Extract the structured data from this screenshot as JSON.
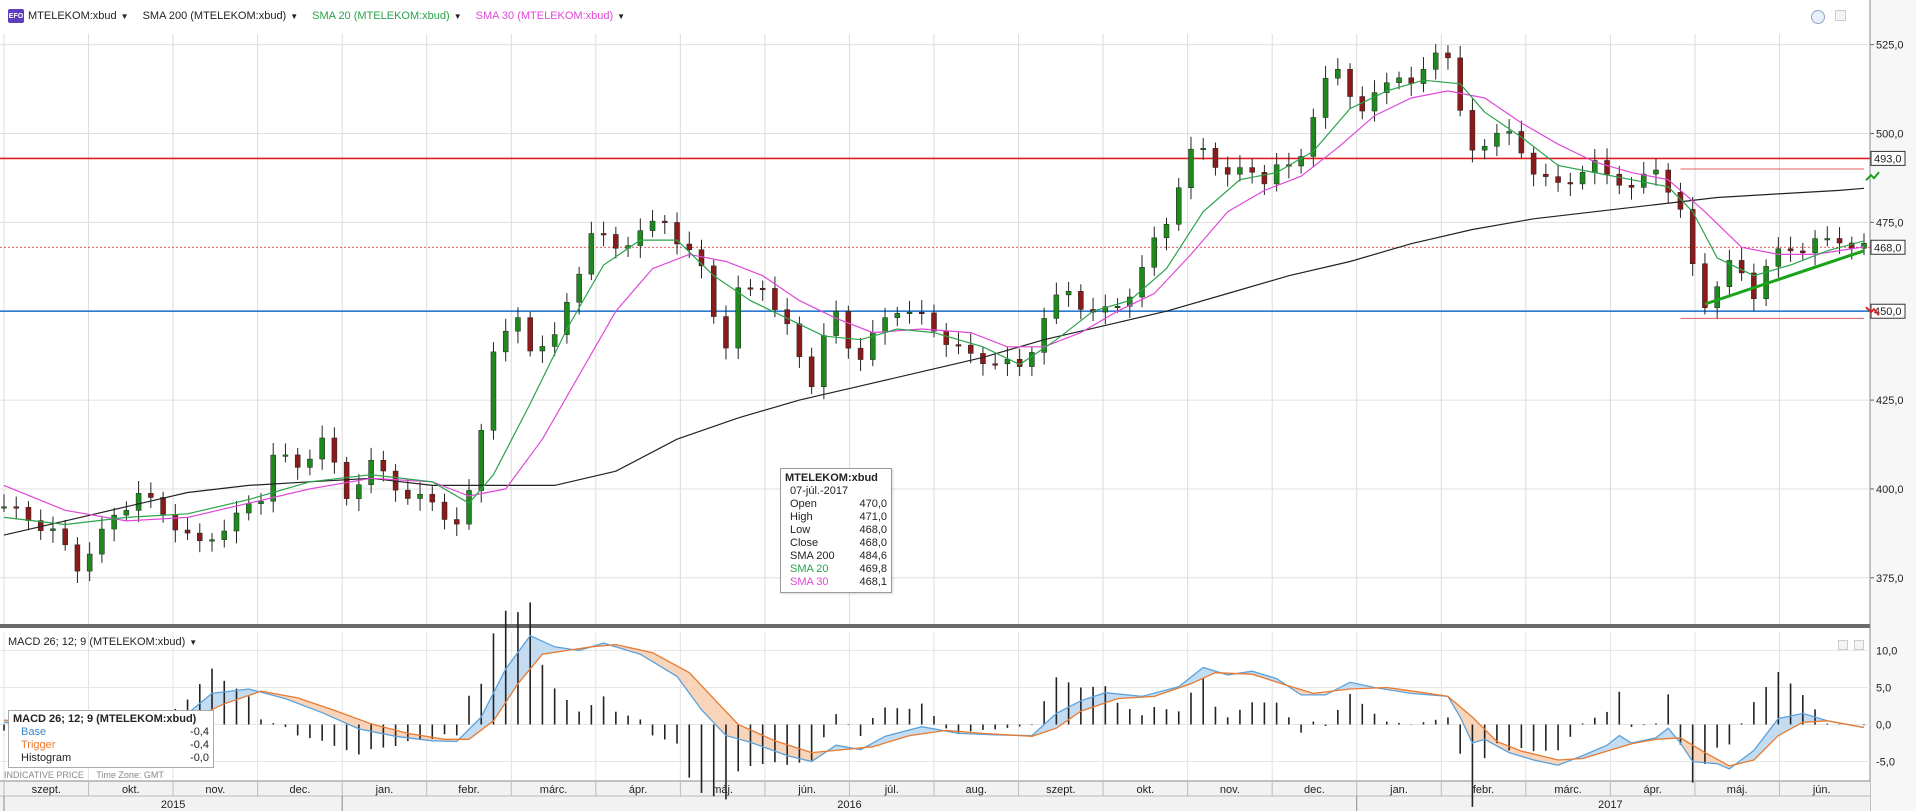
{
  "legend": {
    "instrument": "MTELEKOM:xbud",
    "sma200": "SMA 200 (MTELEKOM:xbud)",
    "sma20": "SMA 20 (MTELEKOM:xbud)",
    "sma30": "SMA 30 (MTELEKOM:xbud)"
  },
  "colors": {
    "candle_up": "#1e8a1e",
    "candle_down": "#8b1a1a",
    "sma200": "#222222",
    "sma20": "#2aa34a",
    "sma30": "#e048d8",
    "resistance": "#e02020",
    "support": "#2a78d0",
    "macd_base": "#5aa2dc",
    "macd_trigger": "#e87a30"
  },
  "tooltip": {
    "title": "MTELEKOM:xbud",
    "date": "07-júl.-2017",
    "rows": [
      {
        "label": "Open",
        "value": "470,0"
      },
      {
        "label": "High",
        "value": "471,0"
      },
      {
        "label": "Low",
        "value": "468,0"
      },
      {
        "label": "Close",
        "value": "468,0"
      },
      {
        "label": "SMA 200",
        "value": "484,6"
      },
      {
        "label": "SMA 20",
        "value": "469,8"
      },
      {
        "label": "SMA 30",
        "value": "468,1"
      }
    ]
  },
  "macd": {
    "label": "MACD 26; 12; 9 (MTELEKOM:xbud)",
    "box_title": "MACD 26; 12; 9 (MTELEKOM:xbud)",
    "rows": [
      {
        "label": "Base",
        "value": "-0,4"
      },
      {
        "label": "Trigger",
        "value": "-0,4"
      },
      {
        "label": "Histogram",
        "value": "-0,0"
      }
    ]
  },
  "footer": {
    "price_type": "INDICATIVE PRICE",
    "timezone": "Time Zone: GMT"
  },
  "chart_data": {
    "type": "line",
    "price_axis": {
      "min": 362,
      "max": 528,
      "ticks": [
        375,
        400,
        425,
        450,
        475,
        500,
        525
      ],
      "tick_labels": [
        "375,0",
        "400,0",
        "425,0",
        "450,0",
        "475,0",
        "500,0",
        "525,0"
      ]
    },
    "macd_axis": {
      "min": -7.5,
      "max": 12.5,
      "ticks": [
        -5,
        0,
        5,
        10
      ],
      "tick_labels": [
        "-5,0",
        "0,0",
        "5,0",
        "10,0"
      ]
    },
    "months": [
      "szept.",
      "okt.",
      "nov.",
      "dec.",
      "jan.",
      "febr.",
      "márc.",
      "ápr.",
      "máj.",
      "jún.",
      "júl.",
      "aug.",
      "szept.",
      "okt.",
      "nov.",
      "dec.",
      "jan.",
      "febr.",
      "márc.",
      "ápr.",
      "máj.",
      "jún."
    ],
    "years": [
      "2015",
      "2016",
      "2017"
    ],
    "horizontal_levels": [
      {
        "value": 493,
        "label": "493,0",
        "color": "#e02020"
      },
      {
        "value": 468,
        "label": "468,0",
        "color": "#e02020",
        "dotted": true
      },
      {
        "value": 450,
        "label": "450,0",
        "color": "#2a78d0"
      }
    ],
    "close": [
      [
        0,
        395
      ],
      [
        4,
        388
      ],
      [
        6,
        378
      ],
      [
        9,
        392
      ],
      [
        11,
        399
      ],
      [
        14,
        390
      ],
      [
        16,
        384
      ],
      [
        19,
        392
      ],
      [
        21,
        398
      ],
      [
        22,
        410
      ],
      [
        24,
        406
      ],
      [
        26,
        414
      ],
      [
        27,
        406
      ],
      [
        28,
        398
      ],
      [
        30,
        407
      ],
      [
        31,
        404
      ],
      [
        33,
        398
      ],
      [
        35,
        396
      ],
      [
        37,
        390
      ],
      [
        38,
        398
      ],
      [
        39,
        417
      ],
      [
        40,
        440
      ],
      [
        42,
        447
      ],
      [
        43,
        440
      ],
      [
        45,
        442
      ],
      [
        46,
        452
      ],
      [
        47,
        462
      ],
      [
        48,
        472
      ],
      [
        50,
        468
      ],
      [
        52,
        472
      ],
      [
        54,
        476
      ],
      [
        55,
        470
      ],
      [
        57,
        462
      ],
      [
        58,
        450
      ],
      [
        59,
        440
      ],
      [
        60,
        455
      ],
      [
        62,
        458
      ],
      [
        63,
        450
      ],
      [
        64,
        445
      ],
      [
        65,
        438
      ],
      [
        66,
        430
      ],
      [
        67,
        442
      ],
      [
        68,
        449
      ],
      [
        69,
        441
      ],
      [
        70,
        437
      ],
      [
        72,
        448
      ],
      [
        73,
        451
      ],
      [
        75,
        448
      ],
      [
        77,
        442
      ],
      [
        79,
        437
      ],
      [
        81,
        436
      ],
      [
        83,
        434
      ],
      [
        84,
        440
      ],
      [
        85,
        448
      ],
      [
        86,
        453
      ],
      [
        87,
        456
      ],
      [
        88,
        452
      ],
      [
        89,
        449
      ],
      [
        90,
        450
      ],
      [
        92,
        455
      ],
      [
        93,
        461
      ],
      [
        94,
        470
      ],
      [
        95,
        476
      ],
      [
        96,
        485
      ],
      [
        97,
        494
      ],
      [
        98,
        496
      ],
      [
        99,
        492
      ],
      [
        100,
        488
      ],
      [
        102,
        490
      ],
      [
        103,
        487
      ],
      [
        104,
        490
      ],
      [
        105,
        490
      ],
      [
        106,
        495
      ],
      [
        107,
        505
      ],
      [
        108,
        514
      ],
      [
        109,
        518
      ],
      [
        110,
        512
      ],
      [
        111,
        506
      ],
      [
        112,
        510
      ],
      [
        113,
        515
      ],
      [
        114,
        517
      ],
      [
        115,
        513
      ],
      [
        116,
        517
      ],
      [
        117,
        524
      ],
      [
        118,
        522
      ],
      [
        119,
        505
      ],
      [
        120,
        495
      ],
      [
        121,
        498
      ],
      [
        122,
        500
      ],
      [
        123,
        499
      ],
      [
        124,
        495
      ],
      [
        125,
        490
      ],
      [
        126,
        487
      ],
      [
        127,
        485
      ],
      [
        128,
        487
      ],
      [
        129,
        490
      ],
      [
        130,
        491
      ],
      [
        131,
        488
      ],
      [
        132,
        487
      ],
      [
        133,
        485
      ],
      [
        134,
        487
      ],
      [
        135,
        490
      ],
      [
        136,
        485
      ],
      [
        137,
        478
      ],
      [
        138,
        462
      ],
      [
        139,
        452
      ],
      [
        140,
        458
      ],
      [
        141,
        463
      ],
      [
        142,
        460
      ],
      [
        143,
        455
      ],
      [
        144,
        463
      ],
      [
        145,
        466
      ],
      [
        146,
        467
      ],
      [
        147,
        468
      ],
      [
        148,
        470
      ],
      [
        149,
        469
      ],
      [
        150,
        470
      ],
      [
        151,
        469
      ],
      [
        152,
        468
      ]
    ],
    "sma20": [
      [
        0,
        392
      ],
      [
        5,
        390
      ],
      [
        10,
        392
      ],
      [
        15,
        393
      ],
      [
        20,
        397
      ],
      [
        25,
        402
      ],
      [
        30,
        404
      ],
      [
        35,
        402
      ],
      [
        38,
        396
      ],
      [
        40,
        404
      ],
      [
        43,
        424
      ],
      [
        46,
        445
      ],
      [
        49,
        463
      ],
      [
        52,
        470
      ],
      [
        55,
        470
      ],
      [
        58,
        460
      ],
      [
        61,
        453
      ],
      [
        64,
        448
      ],
      [
        67,
        443
      ],
      [
        70,
        442
      ],
      [
        73,
        445
      ],
      [
        76,
        444
      ],
      [
        80,
        440
      ],
      [
        83,
        435
      ],
      [
        86,
        442
      ],
      [
        89,
        450
      ],
      [
        92,
        453
      ],
      [
        95,
        462
      ],
      [
        98,
        478
      ],
      [
        101,
        487
      ],
      [
        104,
        489
      ],
      [
        107,
        495
      ],
      [
        110,
        507
      ],
      [
        113,
        512
      ],
      [
        116,
        515
      ],
      [
        119,
        514
      ],
      [
        121,
        506
      ],
      [
        124,
        499
      ],
      [
        127,
        491
      ],
      [
        130,
        489
      ],
      [
        133,
        487
      ],
      [
        136,
        485
      ],
      [
        138,
        478
      ],
      [
        140,
        465
      ],
      [
        143,
        460
      ],
      [
        146,
        463
      ],
      [
        149,
        467
      ],
      [
        152,
        469.8
      ]
    ],
    "sma30": [
      [
        0,
        401
      ],
      [
        5,
        394
      ],
      [
        10,
        391
      ],
      [
        15,
        392
      ],
      [
        20,
        396
      ],
      [
        25,
        400
      ],
      [
        30,
        403
      ],
      [
        35,
        402
      ],
      [
        38,
        398
      ],
      [
        41,
        400
      ],
      [
        44,
        414
      ],
      [
        47,
        432
      ],
      [
        50,
        450
      ],
      [
        53,
        462
      ],
      [
        56,
        466
      ],
      [
        59,
        464
      ],
      [
        62,
        460
      ],
      [
        65,
        453
      ],
      [
        68,
        448
      ],
      [
        71,
        444
      ],
      [
        75,
        445
      ],
      [
        79,
        444
      ],
      [
        82,
        440
      ],
      [
        85,
        440
      ],
      [
        88,
        444
      ],
      [
        91,
        450
      ],
      [
        94,
        455
      ],
      [
        97,
        466
      ],
      [
        100,
        478
      ],
      [
        103,
        484
      ],
      [
        106,
        488
      ],
      [
        109,
        496
      ],
      [
        112,
        505
      ],
      [
        115,
        510
      ],
      [
        118,
        512
      ],
      [
        121,
        510
      ],
      [
        124,
        503
      ],
      [
        127,
        497
      ],
      [
        130,
        492
      ],
      [
        133,
        489
      ],
      [
        136,
        487
      ],
      [
        139,
        478
      ],
      [
        142,
        468
      ],
      [
        145,
        466
      ],
      [
        148,
        466
      ],
      [
        152,
        468.1
      ]
    ],
    "sma200": [
      [
        0,
        387
      ],
      [
        5,
        391
      ],
      [
        10,
        395
      ],
      [
        15,
        399
      ],
      [
        20,
        401
      ],
      [
        25,
        402
      ],
      [
        30,
        403
      ],
      [
        35,
        401
      ],
      [
        40,
        401
      ],
      [
        45,
        401
      ],
      [
        50,
        405
      ],
      [
        55,
        414
      ],
      [
        60,
        420
      ],
      [
        65,
        425
      ],
      [
        70,
        429
      ],
      [
        75,
        433
      ],
      [
        80,
        437
      ],
      [
        85,
        442
      ],
      [
        90,
        446
      ],
      [
        95,
        450
      ],
      [
        100,
        455
      ],
      [
        105,
        460
      ],
      [
        110,
        464
      ],
      [
        115,
        469
      ],
      [
        120,
        473
      ],
      [
        125,
        476
      ],
      [
        130,
        478
      ],
      [
        135,
        480
      ],
      [
        140,
        482
      ],
      [
        145,
        483
      ],
      [
        150,
        484
      ],
      [
        152,
        484.6
      ]
    ],
    "trendline": [
      [
        139,
        452
      ],
      [
        152,
        467
      ]
    ],
    "macd_base": [
      [
        0,
        0.3
      ],
      [
        6,
        -0.4
      ],
      [
        12,
        -0.5
      ],
      [
        15,
        1.5
      ],
      [
        17,
        4.2
      ],
      [
        20,
        4.8
      ],
      [
        23,
        3.5
      ],
      [
        26,
        1.6
      ],
      [
        29,
        -0.6
      ],
      [
        32,
        -1.6
      ],
      [
        35,
        -2.2
      ],
      [
        37,
        -2.3
      ],
      [
        39,
        1.0
      ],
      [
        41,
        7.5
      ],
      [
        43,
        12.0
      ],
      [
        45,
        10.5
      ],
      [
        47,
        10.0
      ],
      [
        49,
        11.0
      ],
      [
        52,
        9.5
      ],
      [
        55,
        6.5
      ],
      [
        57,
        2.0
      ],
      [
        59,
        -1.5
      ],
      [
        61,
        -2.4
      ],
      [
        64,
        -4.2
      ],
      [
        66,
        -5.0
      ],
      [
        68,
        -2.8
      ],
      [
        70,
        -3.4
      ],
      [
        72,
        -1.6
      ],
      [
        75,
        -0.3
      ],
      [
        78,
        -1.2
      ],
      [
        81,
        -1.4
      ],
      [
        84,
        -1.5
      ],
      [
        86,
        1.5
      ],
      [
        88,
        3.2
      ],
      [
        90,
        4.3
      ],
      [
        93,
        3.8
      ],
      [
        96,
        5.1
      ],
      [
        98,
        7.7
      ],
      [
        100,
        6.7
      ],
      [
        102,
        7.2
      ],
      [
        104,
        6.2
      ],
      [
        106,
        4.0
      ],
      [
        108,
        4.0
      ],
      [
        110,
        5.7
      ],
      [
        112,
        5.0
      ],
      [
        115,
        4.2
      ],
      [
        118,
        3.8
      ],
      [
        119,
        1.0
      ],
      [
        120,
        -2.5
      ],
      [
        121,
        -2.0
      ],
      [
        123,
        -3.8
      ],
      [
        125,
        -4.8
      ],
      [
        127,
        -5.5
      ],
      [
        129,
        -4.2
      ],
      [
        131,
        -2.8
      ],
      [
        132,
        -1.5
      ],
      [
        133,
        -2.5
      ],
      [
        135,
        -1.8
      ],
      [
        136,
        -0.5
      ],
      [
        137,
        -2.5
      ],
      [
        138,
        -5.0
      ],
      [
        140,
        -5.3
      ],
      [
        141,
        -6.0
      ],
      [
        143,
        -3.5
      ],
      [
        145,
        0.8
      ],
      [
        147,
        1.5
      ],
      [
        149,
        0.5
      ],
      [
        152,
        -0.4
      ]
    ],
    "macd_trigger": [
      [
        0,
        0.6
      ],
      [
        6,
        0.0
      ],
      [
        12,
        -0.4
      ],
      [
        15,
        0.5
      ],
      [
        18,
        2.8
      ],
      [
        21,
        4.5
      ],
      [
        24,
        3.6
      ],
      [
        27,
        1.9
      ],
      [
        30,
        0.1
      ],
      [
        33,
        -1.2
      ],
      [
        36,
        -2.0
      ],
      [
        38,
        -2.0
      ],
      [
        40,
        0.5
      ],
      [
        42,
        5.5
      ],
      [
        44,
        9.5
      ],
      [
        46,
        10.0
      ],
      [
        48,
        10.5
      ],
      [
        50,
        10.8
      ],
      [
        53,
        9.7
      ],
      [
        56,
        7.0
      ],
      [
        58,
        3.5
      ],
      [
        60,
        0.0
      ],
      [
        63,
        -2.2
      ],
      [
        66,
        -3.8
      ],
      [
        68,
        -3.5
      ],
      [
        71,
        -3.0
      ],
      [
        74,
        -1.5
      ],
      [
        77,
        -0.8
      ],
      [
        80,
        -1.2
      ],
      [
        84,
        -1.6
      ],
      [
        86,
        -0.5
      ],
      [
        88,
        1.8
      ],
      [
        91,
        3.5
      ],
      [
        94,
        3.8
      ],
      [
        97,
        5.5
      ],
      [
        99,
        7.0
      ],
      [
        102,
        6.8
      ],
      [
        105,
        5.2
      ],
      [
        107,
        4.2
      ],
      [
        110,
        4.8
      ],
      [
        113,
        5.0
      ],
      [
        116,
        4.3
      ],
      [
        118,
        3.8
      ],
      [
        120,
        1.0
      ],
      [
        122,
        -2.3
      ],
      [
        124,
        -3.6
      ],
      [
        127,
        -4.8
      ],
      [
        129,
        -4.6
      ],
      [
        131,
        -3.6
      ],
      [
        133,
        -2.6
      ],
      [
        135,
        -2.0
      ],
      [
        137,
        -1.8
      ],
      [
        139,
        -3.8
      ],
      [
        141,
        -5.6
      ],
      [
        143,
        -4.8
      ],
      [
        145,
        -1.5
      ],
      [
        147,
        0.3
      ],
      [
        149,
        0.5
      ],
      [
        152,
        -0.4
      ]
    ]
  }
}
